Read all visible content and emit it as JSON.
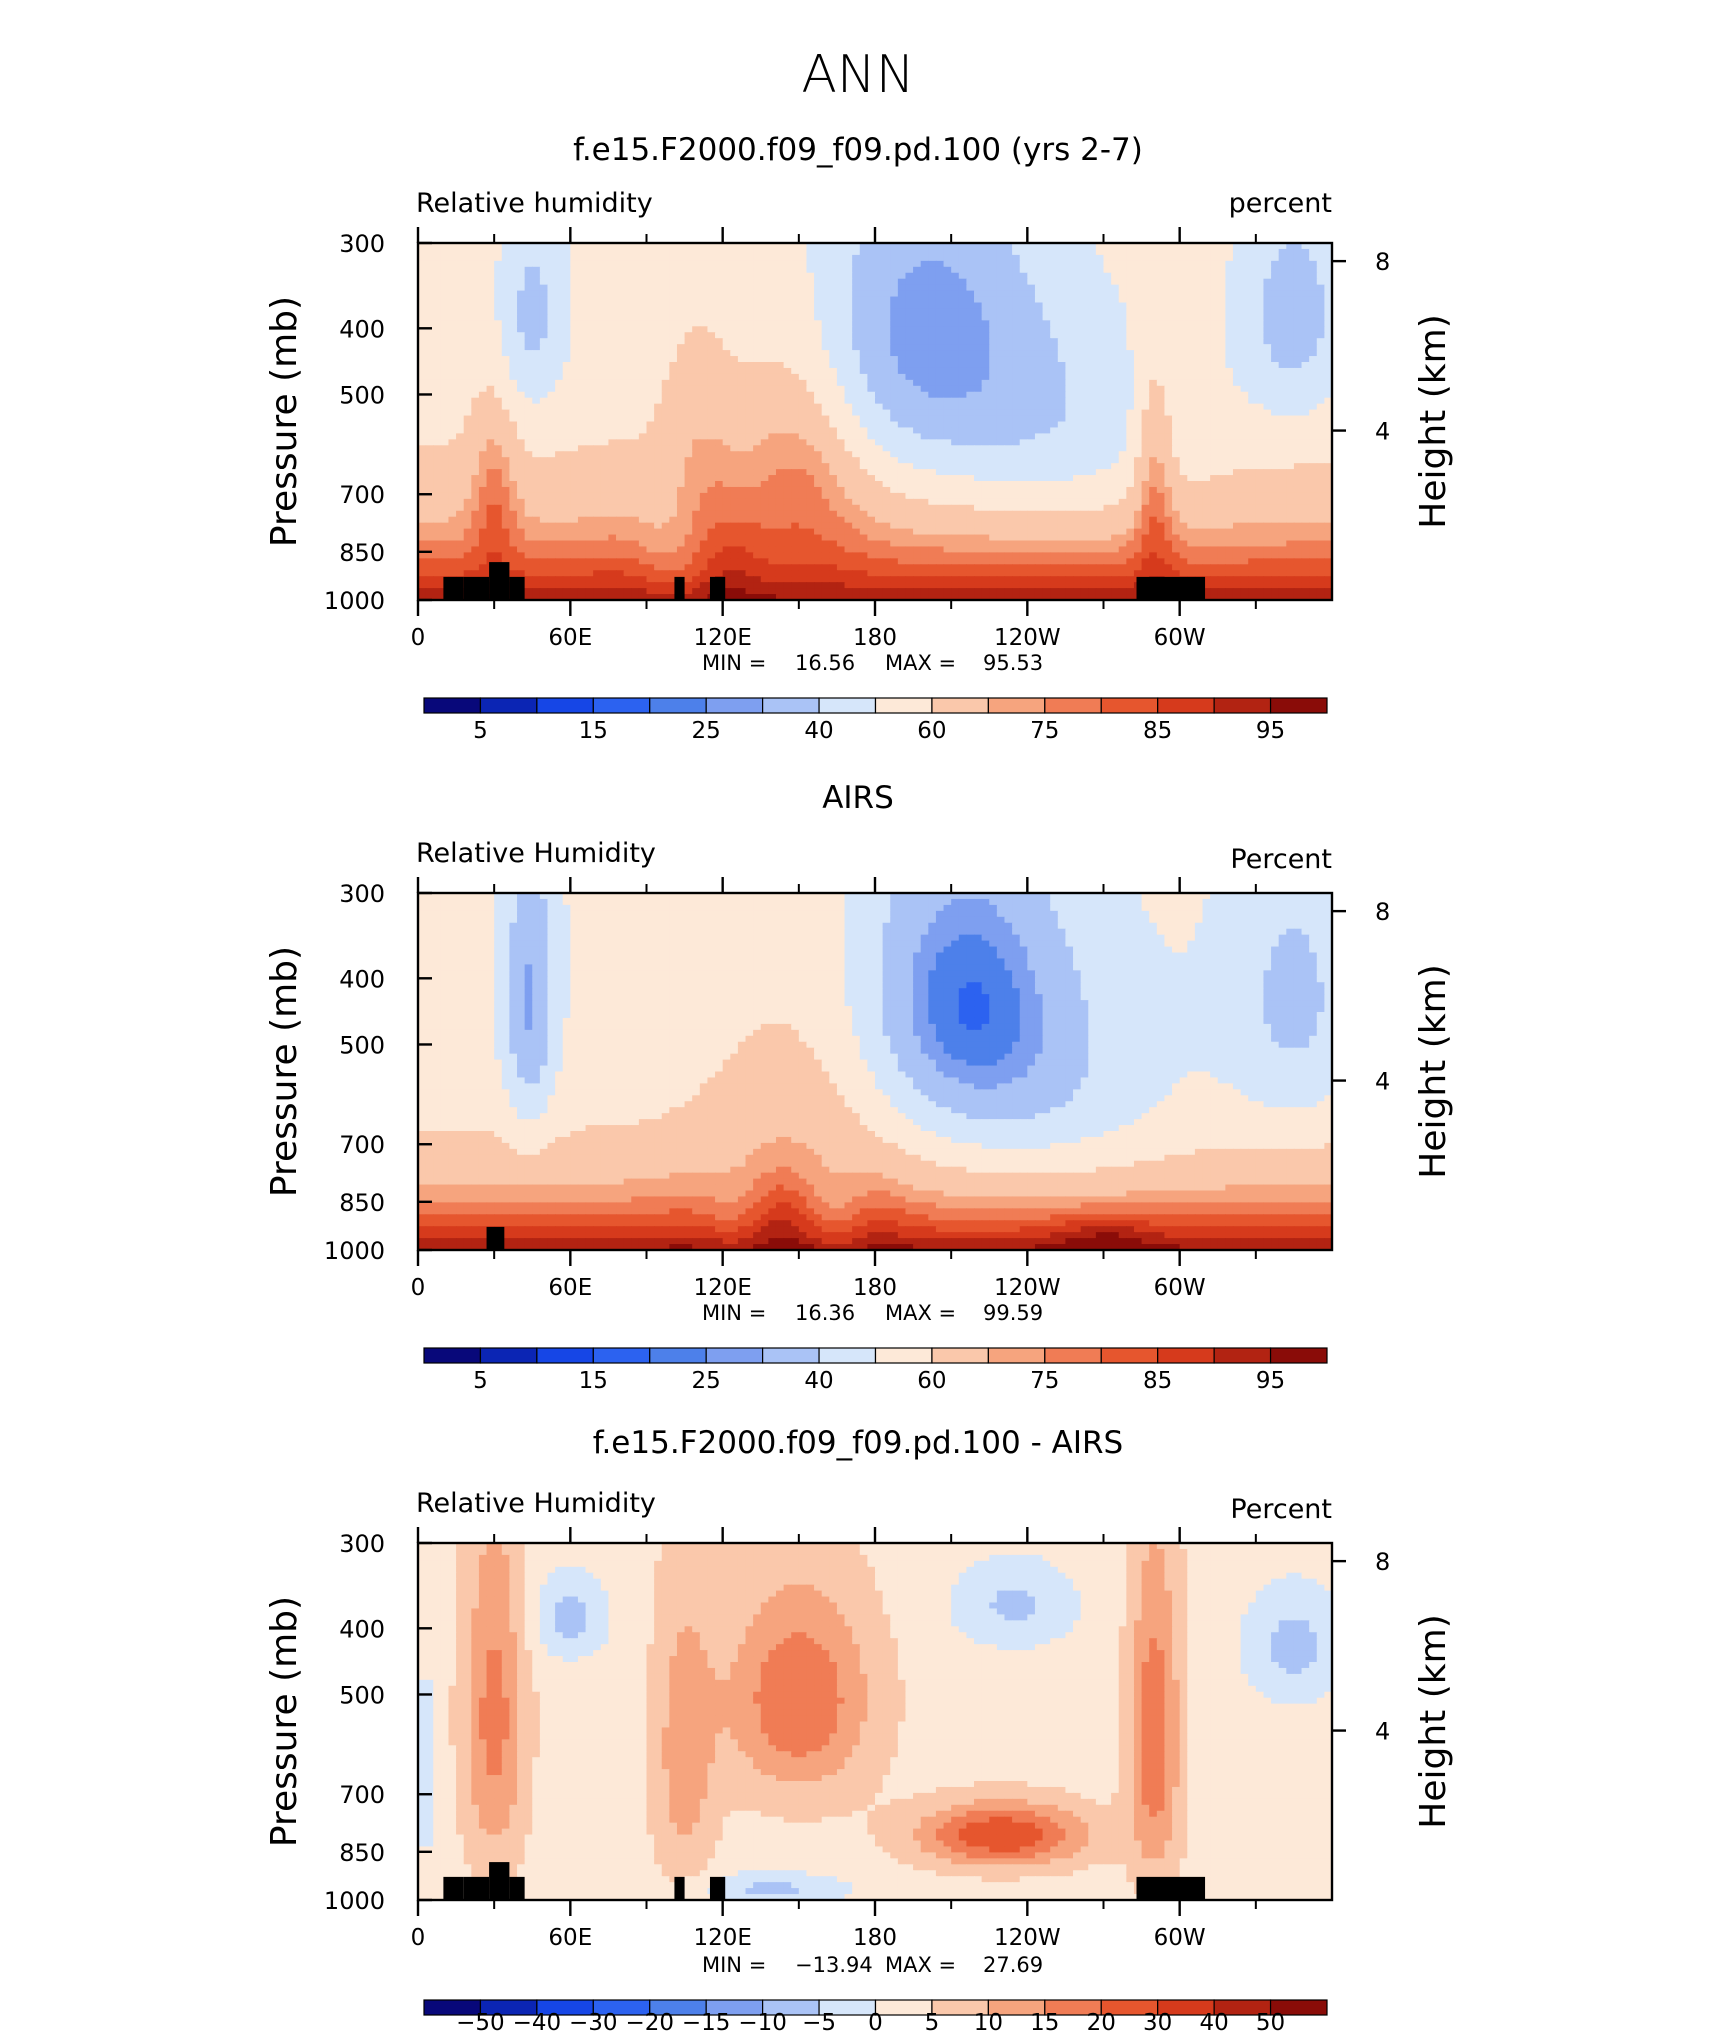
{
  "page_title": "ANN",
  "chart_data": [
    {
      "type": "heatmap",
      "title": "f.e15.F2000.f09_f09.pd.100 (yrs 2-7)",
      "left_label": "Relative  humidity",
      "right_label": "percent",
      "ylabel": "Pressure  (mb)",
      "y2label": "Height  (km)",
      "x_ticks": [
        {
          "lon": 0,
          "label": "0"
        },
        {
          "lon": 60,
          "label": "60E"
        },
        {
          "lon": 120,
          "label": "120E"
        },
        {
          "lon": 180,
          "label": "180"
        },
        {
          "lon": 240,
          "label": "120W"
        },
        {
          "lon": 300,
          "label": "60W"
        }
      ],
      "x_minor": [
        30,
        90,
        150,
        210,
        270,
        330
      ],
      "xlim": [
        0,
        360
      ],
      "y_ticks": [
        {
          "p": 300,
          "label": "300"
        },
        {
          "p": 400,
          "label": "400"
        },
        {
          "p": 500,
          "label": "500"
        },
        {
          "p": 700,
          "label": "700"
        },
        {
          "p": 850,
          "label": "850"
        },
        {
          "p": 1000,
          "label": "1000"
        }
      ],
      "ylim": [
        1000,
        300
      ],
      "y2_ticks": [
        {
          "h": 8,
          "label": "8"
        },
        {
          "h": 4,
          "label": "4"
        }
      ],
      "stats": {
        "min_label": "MIN  =",
        "min": "16.56",
        "max_label": "MAX  =",
        "max": "95.53"
      },
      "colorbar": {
        "labels": [
          "5",
          "15",
          "25",
          "40",
          "60",
          "75",
          "85",
          "95"
        ],
        "colors": [
          "#08087a",
          "#0b25b4",
          "#1646e6",
          "#2c62f0",
          "#4d80ea",
          "#7e9ff0",
          "#aac3f6",
          "#d6e6fa",
          "#fde9d8",
          "#fac8ab",
          "#f6a47e",
          "#f07c55",
          "#e6562e",
          "#d63a1c",
          "#b22312",
          "#8a0c08"
        ]
      },
      "levels": [
        5,
        10,
        15,
        20,
        25,
        30,
        40,
        50,
        60,
        70,
        75,
        80,
        85,
        90,
        95
      ],
      "field_kind": "model"
    },
    {
      "type": "heatmap",
      "title": "AIRS",
      "left_label": "Relative  Humidity",
      "right_label": "Percent",
      "ylabel": "Pressure  (mb)",
      "y2label": "Height  (km)",
      "x_ticks": [
        {
          "lon": 0,
          "label": "0"
        },
        {
          "lon": 60,
          "label": "60E"
        },
        {
          "lon": 120,
          "label": "120E"
        },
        {
          "lon": 180,
          "label": "180"
        },
        {
          "lon": 240,
          "label": "120W"
        },
        {
          "lon": 300,
          "label": "60W"
        }
      ],
      "x_minor": [
        30,
        90,
        150,
        210,
        270,
        330
      ],
      "xlim": [
        0,
        360
      ],
      "y_ticks": [
        {
          "p": 300,
          "label": "300"
        },
        {
          "p": 400,
          "label": "400"
        },
        {
          "p": 500,
          "label": "500"
        },
        {
          "p": 700,
          "label": "700"
        },
        {
          "p": 850,
          "label": "850"
        },
        {
          "p": 1000,
          "label": "1000"
        }
      ],
      "ylim": [
        1000,
        300
      ],
      "y2_ticks": [
        {
          "h": 8,
          "label": "8"
        },
        {
          "h": 4,
          "label": "4"
        }
      ],
      "stats": {
        "min_label": "MIN  =",
        "min": "16.36",
        "max_label": "MAX  =",
        "max": "99.59"
      },
      "colorbar": {
        "labels": [
          "5",
          "15",
          "25",
          "40",
          "60",
          "75",
          "85",
          "95"
        ],
        "colors": [
          "#08087a",
          "#0b25b4",
          "#1646e6",
          "#2c62f0",
          "#4d80ea",
          "#7e9ff0",
          "#aac3f6",
          "#d6e6fa",
          "#fde9d8",
          "#fac8ab",
          "#f6a47e",
          "#f07c55",
          "#e6562e",
          "#d63a1c",
          "#b22312",
          "#8a0c08"
        ]
      },
      "levels": [
        5,
        10,
        15,
        20,
        25,
        30,
        40,
        50,
        60,
        70,
        75,
        80,
        85,
        90,
        95
      ],
      "field_kind": "obs"
    },
    {
      "type": "heatmap",
      "title": "f.e15.F2000.f09_f09.pd.100 - AIRS",
      "left_label": "Relative  Humidity",
      "right_label": "Percent",
      "ylabel": "Pressure  (mb)",
      "y2label": "Height  (km)",
      "x_ticks": [
        {
          "lon": 0,
          "label": "0"
        },
        {
          "lon": 60,
          "label": "60E"
        },
        {
          "lon": 120,
          "label": "120E"
        },
        {
          "lon": 180,
          "label": "180"
        },
        {
          "lon": 240,
          "label": "120W"
        },
        {
          "lon": 300,
          "label": "60W"
        }
      ],
      "x_minor": [
        30,
        90,
        150,
        210,
        270,
        330
      ],
      "xlim": [
        0,
        360
      ],
      "y_ticks": [
        {
          "p": 300,
          "label": "300"
        },
        {
          "p": 400,
          "label": "400"
        },
        {
          "p": 500,
          "label": "500"
        },
        {
          "p": 700,
          "label": "700"
        },
        {
          "p": 850,
          "label": "850"
        },
        {
          "p": 1000,
          "label": "1000"
        }
      ],
      "ylim": [
        1000,
        300
      ],
      "y2_ticks": [
        {
          "h": 8,
          "label": "8"
        },
        {
          "h": 4,
          "label": "4"
        }
      ],
      "stats": {
        "min_label": "MIN  =",
        "min": "−13.94",
        "max_label": "MAX  =",
        "max": "27.69"
      },
      "colorbar": {
        "labels": [
          "−50",
          "−40",
          "−30",
          "−20",
          "−15",
          "−10",
          "−5",
          "0",
          "5",
          "10",
          "15",
          "20",
          "30",
          "40",
          "50"
        ],
        "colors": [
          "#08087a",
          "#0b25b4",
          "#1646e6",
          "#2c62f0",
          "#4d80ea",
          "#7e9ff0",
          "#aac3f6",
          "#d6e6fa",
          "#fde9d8",
          "#fac8ab",
          "#f6a47e",
          "#f07c55",
          "#e6562e",
          "#d63a1c",
          "#b22312",
          "#8a0c08"
        ]
      },
      "levels": [
        -50,
        -40,
        -30,
        -20,
        -15,
        -10,
        -5,
        0,
        5,
        10,
        15,
        20,
        30,
        40,
        50
      ],
      "field_kind": "diff"
    }
  ],
  "land_mask_lon_ranges": [
    [
      10,
      18,
      1000,
      925
    ],
    [
      18,
      28,
      1000,
      925
    ],
    [
      28,
      36,
      1000,
      880
    ],
    [
      36,
      42,
      1000,
      925
    ],
    [
      101,
      105,
      1000,
      925
    ],
    [
      115,
      121,
      1000,
      925
    ],
    [
      283,
      310,
      1000,
      925
    ]
  ],
  "airs_land_mask_lon_ranges": [
    [
      27,
      34,
      1000,
      925
    ]
  ]
}
